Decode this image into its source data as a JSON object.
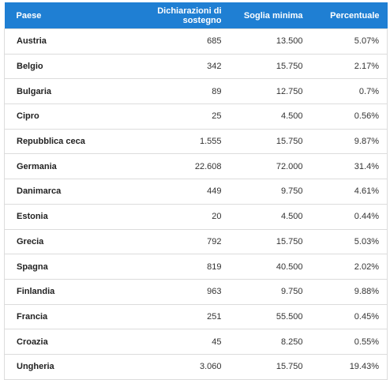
{
  "table": {
    "header": [
      "Paese",
      "Dichiarazioni di sostegno",
      "Soglia minima",
      "Percentuale"
    ],
    "rows": [
      [
        "Austria",
        "685",
        "13.500",
        "5.07%"
      ],
      [
        "Belgio",
        "342",
        "15.750",
        "2.17%"
      ],
      [
        "Bulgaria",
        "89",
        "12.750",
        "0.7%"
      ],
      [
        "Cipro",
        "25",
        "4.500",
        "0.56%"
      ],
      [
        "Repubblica ceca",
        "1.555",
        "15.750",
        "9.87%"
      ],
      [
        "Germania",
        "22.608",
        "72.000",
        "31.4%"
      ],
      [
        "Danimarca",
        "449",
        "9.750",
        "4.61%"
      ],
      [
        "Estonia",
        "20",
        "4.500",
        "0.44%"
      ],
      [
        "Grecia",
        "792",
        "15.750",
        "5.03%"
      ],
      [
        "Spagna",
        "819",
        "40.500",
        "2.02%"
      ],
      [
        "Finlandia",
        "963",
        "9.750",
        "9.88%"
      ],
      [
        "Francia",
        "251",
        "55.500",
        "0.45%"
      ],
      [
        "Croazia",
        "45",
        "8.250",
        "0.55%"
      ],
      [
        "Ungheria",
        "3.060",
        "15.750",
        "19.43%"
      ]
    ]
  }
}
